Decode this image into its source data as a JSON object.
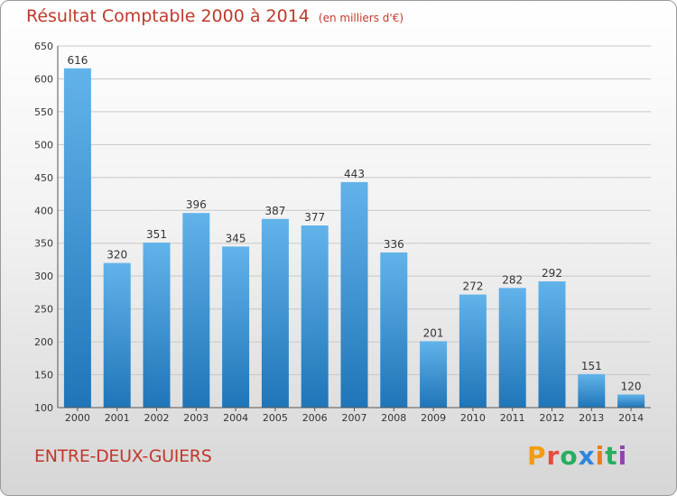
{
  "header": {
    "title": "Résultat Comptable 2000 à 2014",
    "subtitle": "(en milliers d'€)"
  },
  "footer": {
    "commune": "ENTRE-DEUX-GUIERS",
    "logo_text": "Proxiti"
  },
  "colors": {
    "title": "#c0392b",
    "bar_top": "#62b3ea",
    "bar_bottom": "#1f75b8",
    "grid": "#c8c8c8"
  },
  "chart_data": {
    "type": "bar",
    "title": "Résultat Comptable 2000 à 2014",
    "subtitle": "(en milliers d'€)",
    "categories": [
      "2000",
      "2001",
      "2002",
      "2003",
      "2004",
      "2005",
      "2006",
      "2007",
      "2008",
      "2009",
      "2010",
      "2011",
      "2012",
      "2013",
      "2014"
    ],
    "values": [
      616,
      320,
      351,
      396,
      345,
      387,
      377,
      443,
      336,
      201,
      272,
      282,
      292,
      151,
      120
    ],
    "ylim": [
      100,
      650
    ],
    "yticks": [
      100,
      150,
      200,
      250,
      300,
      350,
      400,
      450,
      500,
      550,
      600,
      650
    ],
    "xlabel": "",
    "ylabel": "",
    "grid": true,
    "data_labels": true
  }
}
